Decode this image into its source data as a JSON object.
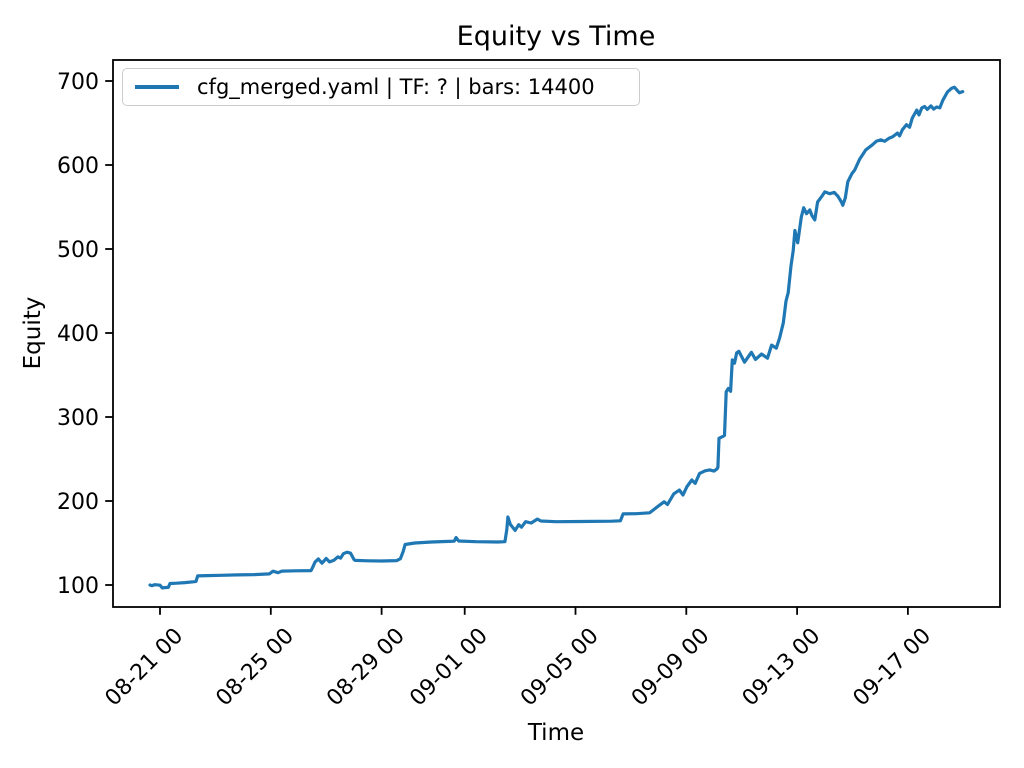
{
  "chart_data": {
    "type": "line",
    "title": "Equity vs Time",
    "xlabel": "Time",
    "ylabel": "Equity",
    "grid": false,
    "legend": {
      "position": "upper left",
      "entries": [
        "cfg_merged.yaml | TF: ? | bars: 14400"
      ]
    },
    "x_axis": {
      "unit": "day offset from 08-21 00:00",
      "ticks": [
        {
          "d": 0,
          "label": "08-21 00"
        },
        {
          "d": 4,
          "label": "08-25 00"
        },
        {
          "d": 8,
          "label": "08-29 00"
        },
        {
          "d": 11,
          "label": "09-01 00"
        },
        {
          "d": 15,
          "label": "09-05 00"
        },
        {
          "d": 19,
          "label": "09-09 00"
        },
        {
          "d": 23,
          "label": "09-13 00"
        },
        {
          "d": 27,
          "label": "09-17 00"
        }
      ],
      "range_days": [
        -1.7,
        30.3
      ],
      "label_rotation_deg": 45
    },
    "y_axis": {
      "ticks": [
        100,
        200,
        300,
        400,
        500,
        600,
        700
      ],
      "range": [
        74,
        725
      ]
    },
    "colors": {
      "line": "#1f77b4",
      "axis": "#000000",
      "background": "#ffffff",
      "legend_border": "#cccccc"
    },
    "series": [
      {
        "name": "cfg_merged.yaml | TF: ? | bars: 14400",
        "color": "#1f77b4",
        "points_day_value": [
          [
            -0.36,
            100
          ],
          [
            -0.3,
            99.2
          ],
          [
            -0.18,
            100.3
          ],
          [
            0,
            99.8
          ],
          [
            0.08,
            96.6
          ],
          [
            0.22,
            97
          ],
          [
            0.3,
            97.2
          ],
          [
            0.36,
            101.8
          ],
          [
            0.6,
            102.2
          ],
          [
            0.9,
            102.8
          ],
          [
            1.2,
            103.8
          ],
          [
            1.3,
            104.3
          ],
          [
            1.36,
            110.8
          ],
          [
            1.7,
            111.2
          ],
          [
            2.2,
            111.6
          ],
          [
            2.8,
            112
          ],
          [
            3.4,
            112.4
          ],
          [
            3.95,
            113.2
          ],
          [
            4.08,
            116.4
          ],
          [
            4.26,
            114.6
          ],
          [
            4.4,
            116.6
          ],
          [
            4.9,
            116.9
          ],
          [
            5.45,
            117.2
          ],
          [
            5.52,
            121.5
          ],
          [
            5.6,
            127.5
          ],
          [
            5.72,
            131
          ],
          [
            5.85,
            126
          ],
          [
            6,
            131.5
          ],
          [
            6.12,
            127.5
          ],
          [
            6.28,
            129.5
          ],
          [
            6.42,
            133.5
          ],
          [
            6.52,
            132
          ],
          [
            6.62,
            137.3
          ],
          [
            6.75,
            139
          ],
          [
            6.88,
            137.8
          ],
          [
            7,
            130.5
          ],
          [
            7.05,
            129.3
          ],
          [
            7.5,
            128.8
          ],
          [
            8,
            128.6
          ],
          [
            8.55,
            129
          ],
          [
            8.68,
            131.3
          ],
          [
            8.78,
            140
          ],
          [
            8.85,
            148.2
          ],
          [
            9.2,
            150
          ],
          [
            9.8,
            151.2
          ],
          [
            10.3,
            151.8
          ],
          [
            10.62,
            152.2
          ],
          [
            10.69,
            156.6
          ],
          [
            10.78,
            152.4
          ],
          [
            11.4,
            151.6
          ],
          [
            12.2,
            151.2
          ],
          [
            12.45,
            151.6
          ],
          [
            12.52,
            166
          ],
          [
            12.56,
            181
          ],
          [
            12.65,
            172
          ],
          [
            12.82,
            165
          ],
          [
            12.95,
            171.8
          ],
          [
            13.05,
            168.8
          ],
          [
            13.2,
            175.4
          ],
          [
            13.4,
            173.8
          ],
          [
            13.62,
            178.4
          ],
          [
            13.75,
            176.2
          ],
          [
            14.3,
            175.4
          ],
          [
            15.2,
            175.6
          ],
          [
            16.3,
            176
          ],
          [
            16.62,
            176.4
          ],
          [
            16.72,
            184.6
          ],
          [
            17.2,
            184.9
          ],
          [
            17.68,
            186
          ],
          [
            18.02,
            194.8
          ],
          [
            18.2,
            199
          ],
          [
            18.32,
            195.8
          ],
          [
            18.55,
            208.6
          ],
          [
            18.75,
            213
          ],
          [
            18.88,
            207.2
          ],
          [
            19.02,
            217
          ],
          [
            19.2,
            225
          ],
          [
            19.32,
            221
          ],
          [
            19.48,
            232.8
          ],
          [
            19.68,
            236
          ],
          [
            19.85,
            237
          ],
          [
            20,
            235.6
          ],
          [
            20.1,
            238
          ],
          [
            20.14,
            240
          ],
          [
            20.18,
            274.6
          ],
          [
            20.3,
            276.6
          ],
          [
            20.38,
            278
          ],
          [
            20.44,
            330
          ],
          [
            20.52,
            334
          ],
          [
            20.6,
            330.6
          ],
          [
            20.66,
            368
          ],
          [
            20.74,
            364
          ],
          [
            20.82,
            376.4
          ],
          [
            20.9,
            378.2
          ],
          [
            21.1,
            365.2
          ],
          [
            21.35,
            377
          ],
          [
            21.5,
            368.6
          ],
          [
            21.72,
            375
          ],
          [
            21.93,
            370
          ],
          [
            22.08,
            385.6
          ],
          [
            22.25,
            382
          ],
          [
            22.37,
            394
          ],
          [
            22.5,
            412
          ],
          [
            22.6,
            438
          ],
          [
            22.68,
            448
          ],
          [
            22.78,
            480
          ],
          [
            22.86,
            498
          ],
          [
            22.92,
            522
          ],
          [
            23.02,
            507.4
          ],
          [
            23.15,
            538
          ],
          [
            23.24,
            549
          ],
          [
            23.34,
            542
          ],
          [
            23.46,
            546.4
          ],
          [
            23.54,
            539.4
          ],
          [
            23.64,
            534.6
          ],
          [
            23.74,
            556
          ],
          [
            23.9,
            563
          ],
          [
            24,
            568
          ],
          [
            24.18,
            565.8
          ],
          [
            24.34,
            567.4
          ],
          [
            24.47,
            563
          ],
          [
            24.6,
            556
          ],
          [
            24.65,
            552
          ],
          [
            24.74,
            560.8
          ],
          [
            24.83,
            580
          ],
          [
            24.98,
            589.8
          ],
          [
            25.08,
            594
          ],
          [
            25.26,
            607
          ],
          [
            25.48,
            618
          ],
          [
            25.72,
            624
          ],
          [
            25.87,
            628.4
          ],
          [
            26.03,
            630
          ],
          [
            26.16,
            628.2
          ],
          [
            26.33,
            632
          ],
          [
            26.45,
            633.6
          ],
          [
            26.62,
            638
          ],
          [
            26.7,
            634.6
          ],
          [
            26.8,
            642
          ],
          [
            26.95,
            648
          ],
          [
            27.06,
            645
          ],
          [
            27.16,
            656
          ],
          [
            27.32,
            665.4
          ],
          [
            27.4,
            659.6
          ],
          [
            27.5,
            668
          ],
          [
            27.6,
            669.6
          ],
          [
            27.7,
            666.2
          ],
          [
            27.83,
            670.4
          ],
          [
            27.93,
            666.6
          ],
          [
            28.04,
            669
          ],
          [
            28.15,
            668
          ],
          [
            28.26,
            677
          ],
          [
            28.43,
            687
          ],
          [
            28.58,
            691.4
          ],
          [
            28.68,
            692.6
          ],
          [
            28.86,
            686
          ],
          [
            28.98,
            687.4
          ]
        ]
      }
    ]
  }
}
